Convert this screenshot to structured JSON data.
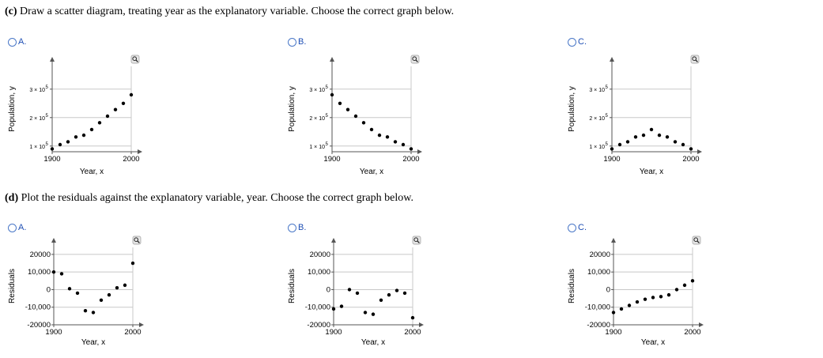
{
  "part_c": {
    "bold": "(c)",
    "text": " Draw a scatter diagram, treating year as the explanatory variable. Choose the correct graph below."
  },
  "part_d": {
    "bold": "(d)",
    "text": " Plot the residuals against the explanatory variable, year. Choose the correct graph below."
  },
  "zoom_icon": "magnifier-zoom-icon",
  "colors": {
    "radio": "#4a78c8",
    "option_label": "#1f4fb4",
    "grid": "#c8c8c8",
    "axis": "#555555"
  },
  "chart_data": [
    {
      "id": "c-a",
      "option_label": "A.",
      "type": "scatter",
      "xlabel": "Year, x",
      "ylabel": "Population, y",
      "xlim": [
        1900,
        2000
      ],
      "ylim": [
        80000,
        380000
      ],
      "xticks": [
        {
          "v": 1900,
          "label": "1900"
        },
        {
          "v": 2000,
          "label": "2000"
        }
      ],
      "yticks": [
        {
          "v": 100000,
          "label": "1 × 10"
        },
        {
          "v": 200000,
          "label": "2 × 10"
        },
        {
          "v": 300000,
          "label": "3 × 10"
        }
      ],
      "ytick_exponent": "5",
      "x": [
        1900,
        1910,
        1920,
        1930,
        1940,
        1950,
        1960,
        1970,
        1980,
        1990,
        2000
      ],
      "y": [
        90000,
        105000,
        115000,
        132000,
        138000,
        158000,
        182000,
        205000,
        228000,
        250000,
        280000
      ]
    },
    {
      "id": "c-b",
      "option_label": "B.",
      "type": "scatter",
      "xlabel": "Year, x",
      "ylabel": "Population, y",
      "xlim": [
        1900,
        2000
      ],
      "ylim": [
        80000,
        380000
      ],
      "xticks": [
        {
          "v": 1900,
          "label": "1900"
        },
        {
          "v": 2000,
          "label": "2000"
        }
      ],
      "yticks": [
        {
          "v": 100000,
          "label": "1 × 10"
        },
        {
          "v": 200000,
          "label": "2 × 10"
        },
        {
          "v": 300000,
          "label": "3 × 10"
        }
      ],
      "ytick_exponent": "5",
      "x": [
        1900,
        1910,
        1920,
        1930,
        1940,
        1950,
        1960,
        1970,
        1980,
        1990,
        2000
      ],
      "y": [
        280000,
        250000,
        228000,
        205000,
        182000,
        158000,
        138000,
        132000,
        115000,
        105000,
        90000
      ]
    },
    {
      "id": "c-c",
      "option_label": "C.",
      "type": "scatter",
      "xlabel": "Year, x",
      "ylabel": "Population, y",
      "xlim": [
        1900,
        2000
      ],
      "ylim": [
        80000,
        380000
      ],
      "xticks": [
        {
          "v": 1900,
          "label": "1900"
        },
        {
          "v": 2000,
          "label": "2000"
        }
      ],
      "yticks": [
        {
          "v": 100000,
          "label": "1 × 10"
        },
        {
          "v": 200000,
          "label": "2 × 10"
        },
        {
          "v": 300000,
          "label": "3 × 10"
        }
      ],
      "ytick_exponent": "5",
      "x": [
        1900,
        1910,
        1920,
        1930,
        1940,
        1950,
        1960,
        1970,
        1980,
        1990,
        2000
      ],
      "y": [
        90000,
        105000,
        115000,
        132000,
        138000,
        158000,
        138000,
        132000,
        115000,
        105000,
        90000
      ]
    },
    {
      "id": "d-a",
      "option_label": "A.",
      "type": "scatter",
      "xlabel": "Year, x",
      "ylabel": "Residuals",
      "xlim": [
        1900,
        2000
      ],
      "ylim": [
        -20000,
        24000
      ],
      "xticks": [
        {
          "v": 1900,
          "label": "1900"
        },
        {
          "v": 2000,
          "label": "2000"
        }
      ],
      "yticks": [
        {
          "v": -20000,
          "label": "-20000"
        },
        {
          "v": -10000,
          "label": "-10,000"
        },
        {
          "v": 0,
          "label": "0"
        },
        {
          "v": 10000,
          "label": "10,000"
        },
        {
          "v": 20000,
          "label": "20000"
        }
      ],
      "x": [
        1900,
        1910,
        1920,
        1930,
        1940,
        1950,
        1960,
        1970,
        1980,
        1990,
        2000
      ],
      "y": [
        10000,
        9000,
        500,
        -2000,
        -12000,
        -13000,
        -6000,
        -3000,
        1000,
        2500,
        15000
      ]
    },
    {
      "id": "d-b",
      "option_label": "B.",
      "type": "scatter",
      "xlabel": "Year, x",
      "ylabel": "Residuals",
      "xlim": [
        1900,
        2000
      ],
      "ylim": [
        -20000,
        24000
      ],
      "xticks": [
        {
          "v": 1900,
          "label": "1900"
        },
        {
          "v": 2000,
          "label": "2000"
        }
      ],
      "yticks": [
        {
          "v": -20000,
          "label": "-20000"
        },
        {
          "v": -10000,
          "label": "-10,000"
        },
        {
          "v": 0,
          "label": "0"
        },
        {
          "v": 10000,
          "label": "10,000"
        },
        {
          "v": 20000,
          "label": "20000"
        }
      ],
      "x": [
        1900,
        1910,
        1920,
        1930,
        1940,
        1950,
        1960,
        1970,
        1980,
        1990,
        2000
      ],
      "y": [
        -11000,
        -9500,
        0,
        -2000,
        -13000,
        -14000,
        -6000,
        -3000,
        -500,
        -2000,
        -16000
      ]
    },
    {
      "id": "d-c",
      "option_label": "C.",
      "type": "scatter",
      "xlabel": "Year, x",
      "ylabel": "Residuals",
      "xlim": [
        1900,
        2000
      ],
      "ylim": [
        -20000,
        24000
      ],
      "xticks": [
        {
          "v": 1900,
          "label": "1900"
        },
        {
          "v": 2000,
          "label": "2000"
        }
      ],
      "yticks": [
        {
          "v": -20000,
          "label": "-20000"
        },
        {
          "v": -10000,
          "label": "-10,000"
        },
        {
          "v": 0,
          "label": "0"
        },
        {
          "v": 10000,
          "label": "10,000"
        },
        {
          "v": 20000,
          "label": "20000"
        }
      ],
      "x": [
        1900,
        1910,
        1920,
        1930,
        1940,
        1950,
        1960,
        1970,
        1980,
        1990,
        2000
      ],
      "y": [
        -13000,
        -11000,
        -9000,
        -7000,
        -5500,
        -4500,
        -4000,
        -3000,
        0,
        2500,
        5000
      ]
    }
  ]
}
